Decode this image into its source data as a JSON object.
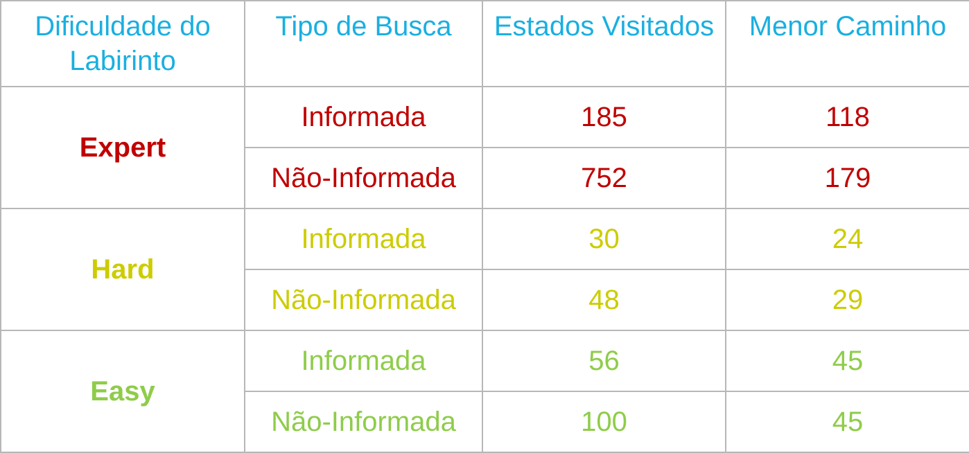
{
  "colors": {
    "header": "#1aafe0",
    "expert": "#c00000",
    "hard": "#cccc00",
    "easy": "#8fcc4a",
    "border": "#b7b7b7"
  },
  "headers": [
    "Dificuldade do Labirinto",
    "Tipo de Busca",
    "Estados Visitados",
    "Menor Caminho"
  ],
  "groups": [
    {
      "difficulty": "Expert",
      "color_key": "expert",
      "rows": [
        {
          "tipo": "Informada",
          "estados": "185",
          "caminho": "118"
        },
        {
          "tipo": "Não-Informada",
          "estados": "752",
          "caminho": "179"
        }
      ]
    },
    {
      "difficulty": "Hard",
      "color_key": "hard",
      "rows": [
        {
          "tipo": "Informada",
          "estados": "30",
          "caminho": "24"
        },
        {
          "tipo": "Não-Informada",
          "estados": "48",
          "caminho": "29"
        }
      ]
    },
    {
      "difficulty": "Easy",
      "color_key": "easy",
      "rows": [
        {
          "tipo": "Informada",
          "estados": "56",
          "caminho": "45"
        },
        {
          "tipo": "Não-Informada",
          "estados": "100",
          "caminho": "45"
        }
      ]
    }
  ]
}
